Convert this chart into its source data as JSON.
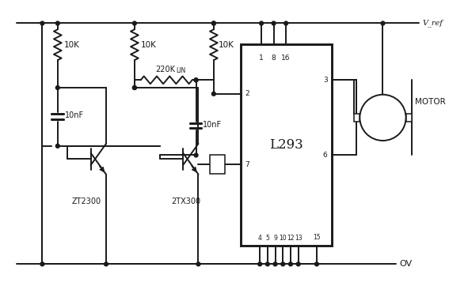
{
  "bg_color": "#ffffff",
  "line_color": "#1a1a1a",
  "line_width": 1.4,
  "vcc_label": "V_ref",
  "ov_label": "OV",
  "motor_label": "MOTOR",
  "ic_label": "L293",
  "transistor1_label": "ZT2300",
  "transistor2_label": "2TX300",
  "r1_label": "10K",
  "r2_label": "10K",
  "r3_label": "10K",
  "r4_label": "220K",
  "r4_sub": "LIN",
  "c1_label": "10nF",
  "c2_label": "10nF"
}
